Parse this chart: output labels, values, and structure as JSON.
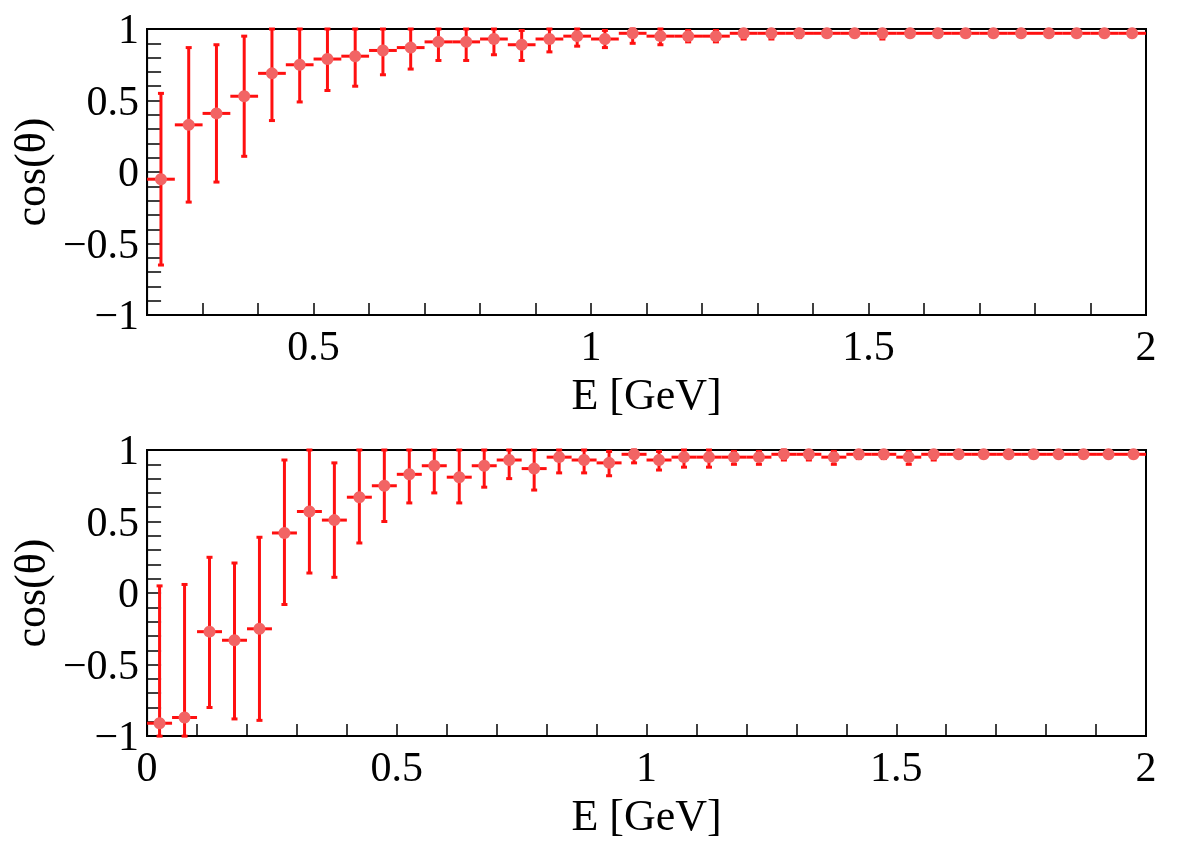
{
  "chart_data": [
    {
      "type": "scatter",
      "xlabel": "E [GeV]",
      "ylabel": "cos(θ)",
      "color": "#f26464",
      "marker": "circle",
      "x": [
        0.225,
        0.275,
        0.325,
        0.375,
        0.425,
        0.475,
        0.525,
        0.575,
        0.625,
        0.675,
        0.725,
        0.775,
        0.825,
        0.875,
        0.925,
        0.975,
        1.025,
        1.075,
        1.125,
        1.175,
        1.225,
        1.275,
        1.325,
        1.375,
        1.425,
        1.475,
        1.525,
        1.575,
        1.625,
        1.675,
        1.725,
        1.775,
        1.825,
        1.875,
        1.925,
        1.975
      ],
      "values": [
        -0.05,
        0.33,
        0.41,
        0.53,
        0.69,
        0.75,
        0.79,
        0.81,
        0.85,
        0.87,
        0.91,
        0.91,
        0.93,
        0.89,
        0.93,
        0.95,
        0.93,
        0.97,
        0.95,
        0.95,
        0.95,
        0.97,
        0.97,
        0.97,
        0.97,
        0.97,
        0.97,
        0.97,
        0.97,
        0.97,
        0.97,
        0.97,
        0.97,
        0.97,
        0.97,
        0.97
      ],
      "errors": [
        [
          -0.65,
          0.55
        ],
        [
          -0.21,
          0.87
        ],
        [
          -0.07,
          0.89
        ],
        [
          0.11,
          0.95
        ],
        [
          0.36,
          1
        ],
        [
          0.49,
          1
        ],
        [
          0.57,
          1
        ],
        [
          0.6,
          1
        ],
        [
          0.68,
          1
        ],
        [
          0.72,
          1
        ],
        [
          0.78,
          1
        ],
        [
          0.78,
          1
        ],
        [
          0.82,
          1
        ],
        [
          0.78,
          0.99
        ],
        [
          0.84,
          1
        ],
        [
          0.88,
          1
        ],
        [
          0.87,
          0.99
        ],
        [
          0.9,
          1
        ],
        [
          0.89,
          1
        ],
        [
          0.91,
          0.99
        ],
        [
          0.91,
          0.99
        ],
        [
          0.93,
          0.99
        ],
        [
          0.93,
          0.99
        ],
        [
          0.94,
          0.99
        ],
        [
          0.95,
          0.99
        ],
        [
          0.95,
          0.99
        ],
        [
          0.93,
          0.99
        ],
        [
          0.95,
          0.99
        ],
        [
          0.95,
          0.99
        ],
        [
          0.95,
          0.99
        ],
        [
          0.95,
          0.99
        ],
        [
          0.95,
          0.99
        ],
        [
          0.95,
          0.99
        ],
        [
          0.95,
          0.99
        ],
        [
          0.95,
          0.99
        ],
        [
          0.95,
          0.99
        ]
      ],
      "xerrors": [
        0.025,
        0.025,
        0.025,
        0.025,
        0.025,
        0.025,
        0.025,
        0.025,
        0.025,
        0.025,
        0.025,
        0.025,
        0.025,
        0.025,
        0.025,
        0.025,
        0.025,
        0.025,
        0.025,
        0.025,
        0.025,
        0.025,
        0.025,
        0.025,
        0.025,
        0.025,
        0.025,
        0.025,
        0.025,
        0.025,
        0.025,
        0.025,
        0.025,
        0.025,
        0.025,
        0.025
      ],
      "xlim": [
        0.2,
        2
      ],
      "xticks": [
        {
          "value": 0.3,
          "label": null
        },
        {
          "value": 0.4,
          "label": null
        },
        0.5,
        {
          "value": 0.6,
          "label": null
        },
        {
          "value": 0.7,
          "label": null
        },
        {
          "value": 0.8,
          "label": null
        },
        {
          "value": 0.9,
          "label": null
        },
        1,
        {
          "value": 1.1,
          "label": null
        },
        {
          "value": 1.2,
          "label": null
        },
        {
          "value": 1.3,
          "label": null
        },
        {
          "value": 1.4,
          "label": null
        },
        1.5,
        {
          "value": 1.6,
          "label": null
        },
        {
          "value": 1.7,
          "label": null
        },
        {
          "value": 1.8,
          "label": null
        },
        {
          "value": 1.9,
          "label": null
        },
        2
      ],
      "ylim": [
        -1,
        1
      ],
      "yticks": [
        {
          "value": -1,
          "label": "−1"
        },
        {
          "value": -0.9,
          "label": null
        },
        {
          "value": -0.8,
          "label": null
        },
        {
          "value": -0.7,
          "label": null
        },
        {
          "value": -0.6,
          "label": null
        },
        {
          "value": -0.5,
          "label": "−0.5"
        },
        {
          "value": -0.4,
          "label": null
        },
        {
          "value": -0.3,
          "label": null
        },
        {
          "value": -0.2,
          "label": null
        },
        {
          "value": -0.1,
          "label": null
        },
        0,
        {
          "value": 0.1,
          "label": null
        },
        {
          "value": 0.2,
          "label": null
        },
        {
          "value": 0.3,
          "label": null
        },
        {
          "value": 0.4,
          "label": null
        },
        0.5,
        {
          "value": 0.6,
          "label": null
        },
        {
          "value": 0.7,
          "label": null
        },
        {
          "value": 0.8,
          "label": null
        },
        {
          "value": 0.9,
          "label": null
        },
        1
      ]
    },
    {
      "type": "scatter",
      "xlabel": "E [GeV]",
      "ylabel": "cos(θ)",
      "color": "#f26464",
      "marker": "circle",
      "x": [
        0.025,
        0.075,
        0.125,
        0.175,
        0.225,
        0.275,
        0.325,
        0.375,
        0.425,
        0.475,
        0.525,
        0.575,
        0.625,
        0.675,
        0.725,
        0.775,
        0.825,
        0.875,
        0.925,
        0.975,
        1.025,
        1.075,
        1.125,
        1.175,
        1.225,
        1.275,
        1.325,
        1.375,
        1.425,
        1.475,
        1.525,
        1.575,
        1.625,
        1.675,
        1.725,
        1.775,
        1.825,
        1.875,
        1.925,
        1.975
      ],
      "values": [
        -0.91,
        -0.87,
        -0.27,
        -0.33,
        -0.25,
        0.42,
        0.57,
        0.51,
        0.67,
        0.75,
        0.83,
        0.89,
        0.81,
        0.89,
        0.93,
        0.87,
        0.95,
        0.93,
        0.91,
        0.97,
        0.93,
        0.95,
        0.95,
        0.95,
        0.95,
        0.97,
        0.97,
        0.95,
        0.97,
        0.97,
        0.95,
        0.97,
        0.97,
        0.97,
        0.97,
        0.97,
        0.97,
        0.97,
        0.97,
        0.97
      ],
      "errors": [
        [
          -1,
          0.05
        ],
        [
          -1,
          0.06
        ],
        [
          -0.8,
          0.25
        ],
        [
          -0.88,
          0.21
        ],
        [
          -0.89,
          0.39
        ],
        [
          -0.08,
          0.93
        ],
        [
          0.14,
          1
        ],
        [
          0.11,
          0.91
        ],
        [
          0.35,
          1
        ],
        [
          0.5,
          1
        ],
        [
          0.63,
          1
        ],
        [
          0.7,
          1
        ],
        [
          0.63,
          1
        ],
        [
          0.74,
          1
        ],
        [
          0.8,
          1
        ],
        [
          0.72,
          1
        ],
        [
          0.84,
          1
        ],
        [
          0.84,
          1
        ],
        [
          0.82,
          0.99
        ],
        [
          0.91,
          1
        ],
        [
          0.86,
          0.99
        ],
        [
          0.88,
          1
        ],
        [
          0.88,
          1
        ],
        [
          0.9,
          0.99
        ],
        [
          0.9,
          0.99
        ],
        [
          0.93,
          1
        ],
        [
          0.93,
          0.99
        ],
        [
          0.9,
          0.99
        ],
        [
          0.94,
          0.99
        ],
        [
          0.94,
          0.99
        ],
        [
          0.9,
          0.99
        ],
        [
          0.93,
          0.99
        ],
        [
          0.95,
          0.99
        ],
        [
          0.95,
          0.99
        ],
        [
          0.95,
          0.99
        ],
        [
          0.95,
          0.99
        ],
        [
          0.95,
          0.99
        ],
        [
          0.95,
          0.99
        ],
        [
          0.95,
          0.99
        ],
        [
          0.95,
          0.99
        ]
      ],
      "xerrors": [
        0.025,
        0.025,
        0.025,
        0.025,
        0.025,
        0.025,
        0.025,
        0.025,
        0.025,
        0.025,
        0.025,
        0.025,
        0.025,
        0.025,
        0.025,
        0.025,
        0.025,
        0.025,
        0.025,
        0.025,
        0.025,
        0.025,
        0.025,
        0.025,
        0.025,
        0.025,
        0.025,
        0.025,
        0.025,
        0.025,
        0.025,
        0.025,
        0.025,
        0.025,
        0.025,
        0.025,
        0.025,
        0.025,
        0.025,
        0.025
      ],
      "xlim": [
        0,
        2
      ],
      "xticks": [
        0,
        {
          "value": 0.1,
          "label": null
        },
        {
          "value": 0.2,
          "label": null
        },
        {
          "value": 0.3,
          "label": null
        },
        {
          "value": 0.4,
          "label": null
        },
        0.5,
        {
          "value": 0.6,
          "label": null
        },
        {
          "value": 0.7,
          "label": null
        },
        {
          "value": 0.8,
          "label": null
        },
        {
          "value": 0.9,
          "label": null
        },
        1,
        {
          "value": 1.1,
          "label": null
        },
        {
          "value": 1.2,
          "label": null
        },
        {
          "value": 1.3,
          "label": null
        },
        {
          "value": 1.4,
          "label": null
        },
        1.5,
        {
          "value": 1.6,
          "label": null
        },
        {
          "value": 1.7,
          "label": null
        },
        {
          "value": 1.8,
          "label": null
        },
        {
          "value": 1.9,
          "label": null
        },
        2
      ],
      "ylim": [
        -1,
        1
      ],
      "yticks": [
        {
          "value": -1,
          "label": "−1"
        },
        {
          "value": -0.9,
          "label": null
        },
        {
          "value": -0.8,
          "label": null
        },
        {
          "value": -0.7,
          "label": null
        },
        {
          "value": -0.6,
          "label": null
        },
        {
          "value": -0.5,
          "label": "−0.5"
        },
        {
          "value": -0.4,
          "label": null
        },
        {
          "value": -0.3,
          "label": null
        },
        {
          "value": -0.2,
          "label": null
        },
        {
          "value": -0.1,
          "label": null
        },
        0,
        {
          "value": 0.1,
          "label": null
        },
        {
          "value": 0.2,
          "label": null
        },
        {
          "value": 0.3,
          "label": null
        },
        {
          "value": 0.4,
          "label": null
        },
        0.5,
        {
          "value": 0.6,
          "label": null
        },
        {
          "value": 0.7,
          "label": null
        },
        {
          "value": 0.8,
          "label": null
        },
        {
          "value": 0.9,
          "label": null
        },
        1
      ]
    }
  ]
}
